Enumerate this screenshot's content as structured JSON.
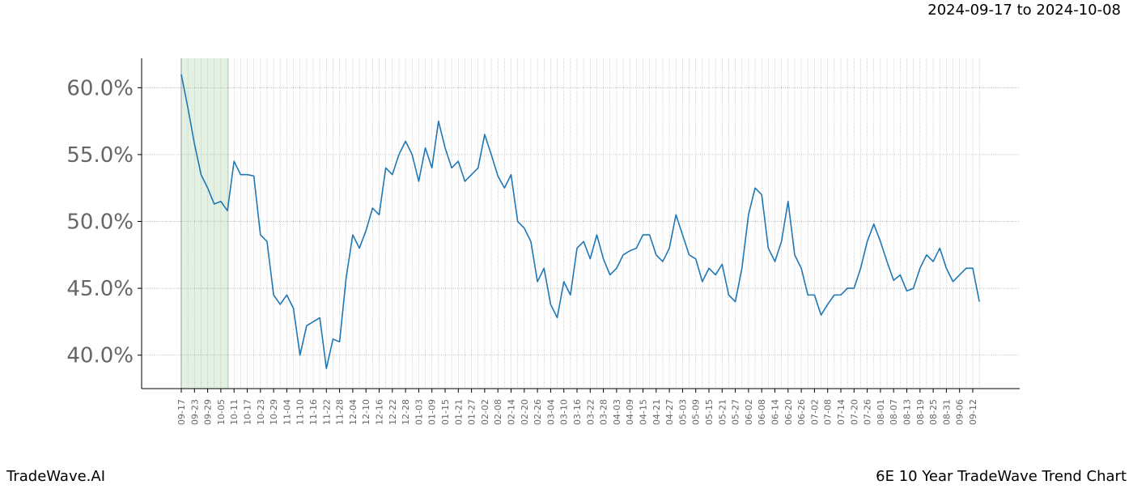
{
  "chart_data": {
    "type": "line",
    "title": "2024-09-17 to 2024-10-08",
    "footer_left": "TradeWave.AI",
    "footer_right": "6E 10 Year TradeWave Trend Chart",
    "categories": [
      "09-17",
      null,
      "09-23",
      null,
      "09-29",
      null,
      "10-05",
      null,
      "10-11",
      null,
      "10-17",
      null,
      "10-23",
      null,
      "10-29",
      null,
      "11-04",
      null,
      "11-10",
      null,
      "11-16",
      null,
      "11-22",
      null,
      "11-28",
      null,
      "12-04",
      null,
      "12-10",
      null,
      "12-16",
      null,
      "12-22",
      null,
      "12-28",
      null,
      "01-03",
      null,
      "01-09",
      null,
      "01-15",
      null,
      "01-21",
      null,
      "01-27",
      null,
      "02-02",
      null,
      "02-08",
      null,
      "02-14",
      null,
      "02-20",
      null,
      "02-26",
      null,
      "03-04",
      null,
      "03-10",
      null,
      "03-16",
      null,
      "03-22",
      null,
      "03-28",
      null,
      "04-03",
      null,
      "04-09",
      null,
      "04-15",
      null,
      "04-21",
      null,
      "04-27",
      null,
      "05-03",
      null,
      "05-09",
      null,
      "05-15",
      null,
      "05-21",
      null,
      "05-27",
      null,
      "06-02",
      null,
      "06-08",
      null,
      "06-14",
      null,
      "06-20",
      null,
      "06-26",
      null,
      "07-02",
      null,
      "07-08",
      null,
      "07-14",
      null,
      "07-20",
      null,
      "07-26",
      null,
      "08-01",
      null,
      "08-07",
      null,
      "08-13",
      null,
      "08-19",
      null,
      "08-25",
      null,
      "08-31",
      null,
      "09-06",
      null,
      "09-12",
      null
    ],
    "series": [
      {
        "color": "#1f77b4",
        "values": [
          61.0,
          58.5,
          55.8,
          53.5,
          52.5,
          51.3,
          51.5,
          50.8,
          54.5,
          53.5,
          53.5,
          53.4,
          49.0,
          48.5,
          44.5,
          43.8,
          44.5,
          43.5,
          40.0,
          42.2,
          42.5,
          42.8,
          39.0,
          41.2,
          41.0,
          45.8,
          49.0,
          48.0,
          49.3,
          51.0,
          50.5,
          54.0,
          53.5,
          55.0,
          56.0,
          55.0,
          53.0,
          55.5,
          54.0,
          57.5,
          55.5,
          54.0,
          54.5,
          53.0,
          53.5,
          54.0,
          56.5,
          55.0,
          53.4,
          52.5,
          53.5,
          50.0,
          49.5,
          48.5,
          45.5,
          46.5,
          43.8,
          42.8,
          45.5,
          44.5,
          48.0,
          48.5,
          47.2,
          49.0,
          47.2,
          46.0,
          46.5,
          47.5,
          47.8,
          48.0,
          49.0,
          49.0,
          47.5,
          47.0,
          48.0,
          50.5,
          49.0,
          47.5,
          47.2,
          45.5,
          46.5,
          46.0,
          46.8,
          44.5,
          44.0,
          46.5,
          50.5,
          52.5,
          52.0,
          48.0,
          47.0,
          48.5,
          51.5,
          47.5,
          46.5,
          44.5,
          44.5,
          43.0,
          43.8,
          44.5,
          44.5,
          45.0,
          45.0,
          46.5,
          48.5,
          49.8,
          48.5,
          47.0,
          45.6,
          46.0,
          44.8,
          45.0,
          46.5,
          47.5,
          47.0,
          48.0,
          46.5,
          45.5,
          46.0,
          46.5,
          46.5,
          44.0
        ]
      }
    ],
    "ylim": [
      37.5,
      62.2
    ],
    "yticks": [
      {
        "value": 40,
        "label": "40.0%"
      },
      {
        "value": 45,
        "label": "45.0%"
      },
      {
        "value": 50,
        "label": "50.0%"
      },
      {
        "value": 55,
        "label": "55.0%"
      },
      {
        "value": 60,
        "label": "60.0%"
      }
    ],
    "grid": true,
    "shade_color": "#e3f1e3"
  }
}
